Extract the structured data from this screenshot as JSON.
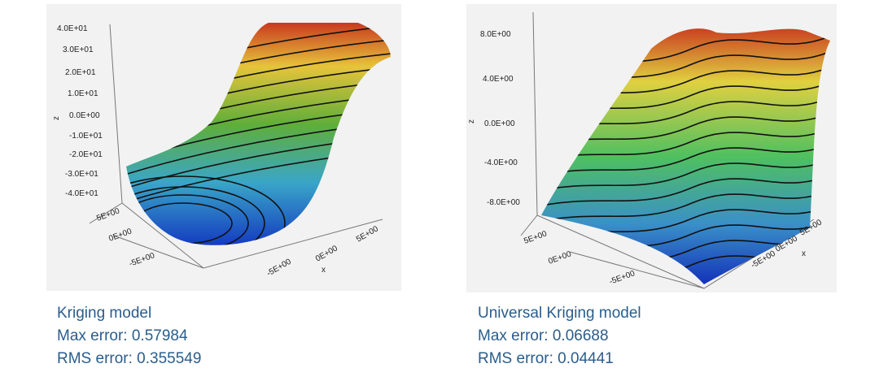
{
  "panels": [
    {
      "z_axis_label": "z",
      "z_ticks": [
        "4.0E+01",
        "3.0E+01",
        "2.0E+01",
        "1.0E+01",
        "0.0E+00",
        "-1.0E+01",
        "-2.0E+01",
        "-3.0E+01",
        "-4.0E+01"
      ],
      "y_ticks": [
        "5E+00",
        "0E+00",
        "-5E+00"
      ],
      "x_axis_label": "x",
      "x_ticks": [
        "-5E+00",
        "0E+00",
        "5E+00"
      ],
      "caption": {
        "title": "Kriging model",
        "max_error": "Max error: 0.57984",
        "rms_error": "RMS error: 0.355549"
      }
    },
    {
      "z_axis_label": "z",
      "z_ticks": [
        "8.0E+00",
        "4.0E+00",
        "0.0E+00",
        "-4.0E+00",
        "-8.0E+00"
      ],
      "y_ticks": [
        "5E+00",
        "0E+00",
        "-5E+00"
      ],
      "x_axis_label": "x",
      "x_ticks": [
        "-5E+00",
        "0E+00",
        "5E+00"
      ],
      "caption": {
        "title": "Universal Kriging model",
        "max_error": "Max error: 0.06688",
        "rms_error": "RMS error: 0.04441"
      }
    }
  ]
}
